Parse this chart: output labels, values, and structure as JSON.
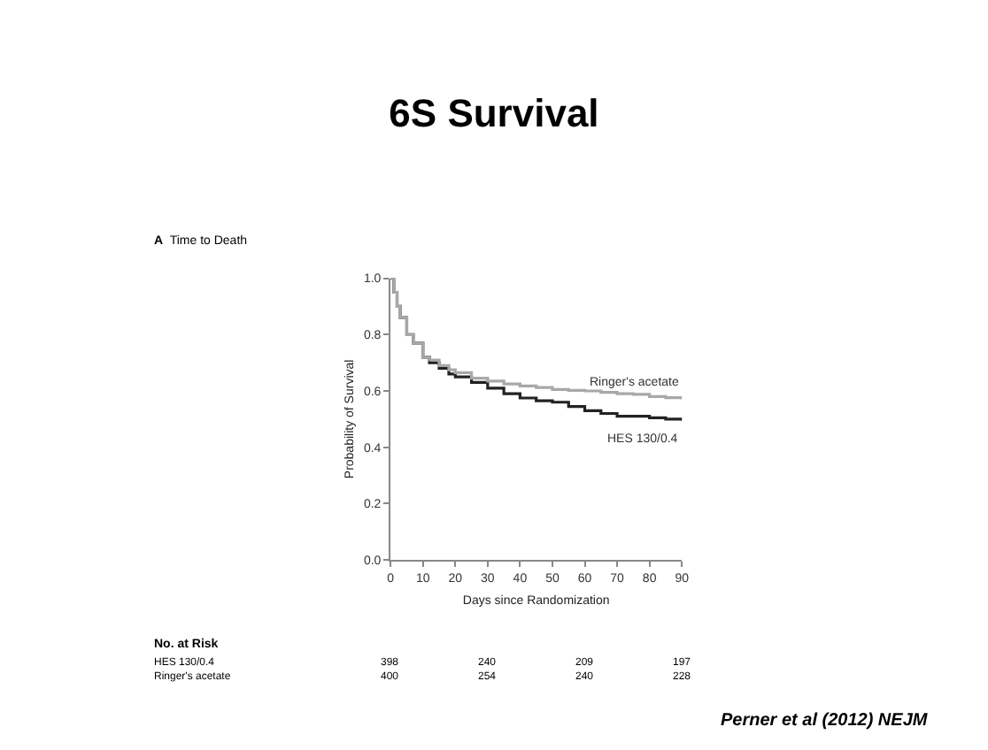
{
  "chart_data": {
    "type": "step",
    "title": "6S Survival",
    "xlabel": "Days since Randomization",
    "ylabel": "Probability of Survival",
    "xlim": [
      0,
      90
    ],
    "xticks": [
      0,
      10,
      20,
      30,
      40,
      50,
      60,
      70,
      80,
      90
    ],
    "ylim": [
      0,
      1
    ],
    "yticks": [
      {
        "value": 0,
        "label": "0.0"
      },
      {
        "value": 0.2,
        "label": "0.2"
      },
      {
        "value": 0.4,
        "label": "0.4"
      },
      {
        "value": 0.6,
        "label": "0.6"
      },
      {
        "value": 0.8,
        "label": "0.8"
      },
      {
        "value": 1,
        "label": "1.0"
      }
    ],
    "legend": false,
    "series": [
      {
        "name": "HES 130/0.4",
        "color": "#222222",
        "x": [
          0,
          1,
          2,
          3,
          5,
          7,
          10,
          12,
          15,
          18,
          20,
          25,
          30,
          35,
          40,
          45,
          50,
          55,
          60,
          65,
          70,
          75,
          80,
          85,
          90
        ],
        "values": [
          1.0,
          0.95,
          0.9,
          0.86,
          0.8,
          0.77,
          0.72,
          0.7,
          0.68,
          0.66,
          0.65,
          0.63,
          0.61,
          0.59,
          0.575,
          0.565,
          0.56,
          0.545,
          0.53,
          0.52,
          0.51,
          0.51,
          0.505,
          0.5,
          0.494
        ]
      },
      {
        "name": "Ringer's acetate",
        "color": "#a8a8a8",
        "x": [
          0,
          1,
          2,
          3,
          5,
          7,
          10,
          12,
          15,
          18,
          20,
          25,
          30,
          35,
          40,
          45,
          50,
          55,
          60,
          65,
          70,
          75,
          80,
          85,
          90
        ],
        "values": [
          1.0,
          0.95,
          0.9,
          0.86,
          0.8,
          0.77,
          0.72,
          0.71,
          0.69,
          0.675,
          0.665,
          0.645,
          0.635,
          0.625,
          0.618,
          0.612,
          0.605,
          0.602,
          0.6,
          0.595,
          0.59,
          0.588,
          0.58,
          0.576,
          0.57
        ]
      }
    ],
    "annotations": [
      "A  Time to Death",
      "No. at Risk",
      "HES 130/0.4",
      "Ringer's acetate",
      "398",
      "240",
      "209",
      "197",
      "400",
      "254",
      "240",
      "228",
      "Perner et al (2012) NEJM"
    ]
  }
}
